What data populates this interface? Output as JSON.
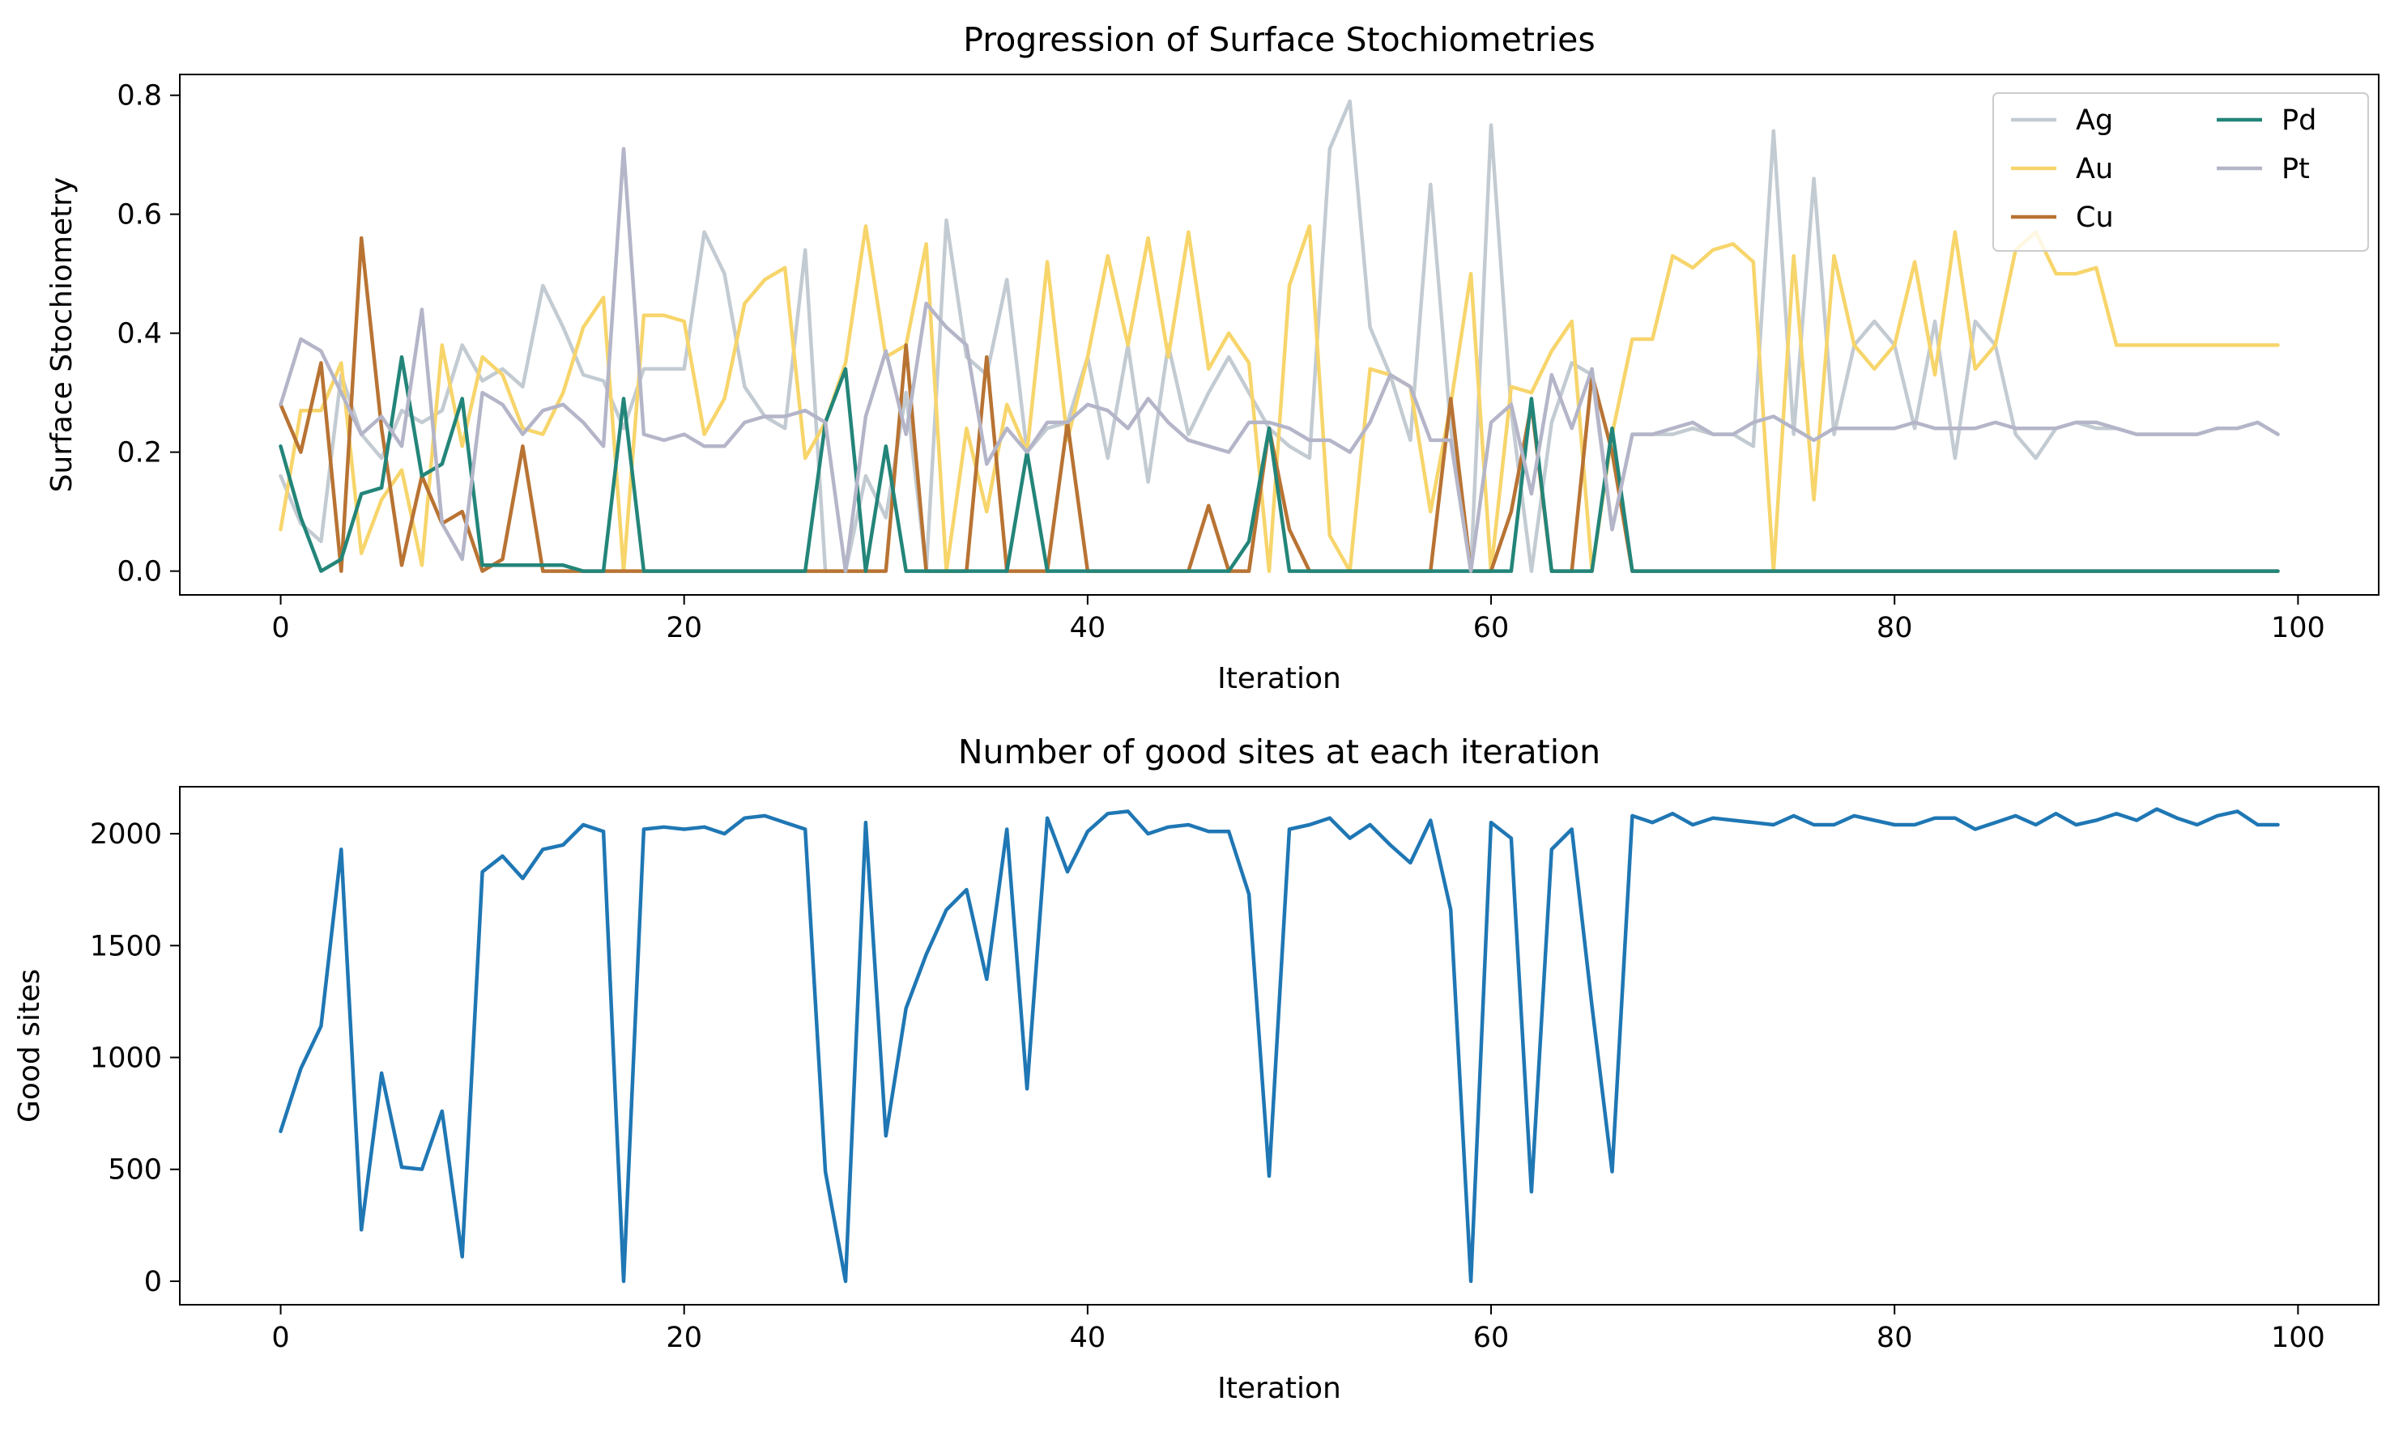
{
  "chart_data": [
    {
      "type": "line",
      "title": "Progression of Surface Stochiometries",
      "xlabel": "Iteration",
      "ylabel": "Surface Stochiometry",
      "xlim": [
        -5,
        104
      ],
      "ylim": [
        -0.04,
        0.835
      ],
      "xticks": [
        0,
        20,
        40,
        60,
        80,
        100
      ],
      "xtick_labels": [
        "0",
        "20",
        "40",
        "60",
        "80",
        "100"
      ],
      "yticks": [
        0.0,
        0.2,
        0.4,
        0.6,
        0.8
      ],
      "ytick_labels": [
        "0.0",
        "0.2",
        "0.4",
        "0.6",
        "0.8"
      ],
      "grid": false,
      "legend": {
        "placement": "upper right",
        "columns": 2
      },
      "x": [
        0,
        1,
        2,
        3,
        4,
        5,
        6,
        7,
        8,
        9,
        10,
        11,
        12,
        13,
        14,
        15,
        16,
        17,
        18,
        19,
        20,
        21,
        22,
        23,
        24,
        25,
        26,
        27,
        28,
        29,
        30,
        31,
        32,
        33,
        34,
        35,
        36,
        37,
        38,
        39,
        40,
        41,
        42,
        43,
        44,
        45,
        46,
        47,
        48,
        49,
        50,
        51,
        52,
        53,
        54,
        55,
        56,
        57,
        58,
        59,
        60,
        61,
        62,
        63,
        64,
        65,
        66,
        67,
        68,
        69,
        70,
        71,
        72,
        73,
        74,
        75,
        76,
        77,
        78,
        79,
        80,
        81,
        82,
        83,
        84,
        85,
        86,
        87,
        88,
        89,
        90,
        91,
        92,
        93,
        94,
        95,
        96,
        97,
        98,
        99
      ],
      "series": [
        {
          "name": "Ag",
          "color": "#c3cbd2",
          "values": [
            0.16,
            0.08,
            0.05,
            0.33,
            0.23,
            0.19,
            0.27,
            0.25,
            0.27,
            0.38,
            0.32,
            0.34,
            0.31,
            0.48,
            0.41,
            0.33,
            0.32,
            0.24,
            0.34,
            0.34,
            0.34,
            0.57,
            0.5,
            0.31,
            0.26,
            0.24,
            0.54,
            0.0,
            0.0,
            0.16,
            0.09,
            0.3,
            0.0,
            0.59,
            0.36,
            0.33,
            0.49,
            0.2,
            0.24,
            0.25,
            0.36,
            0.19,
            0.38,
            0.15,
            0.38,
            0.23,
            0.3,
            0.36,
            0.3,
            0.24,
            0.21,
            0.19,
            0.71,
            0.79,
            0.41,
            0.33,
            0.22,
            0.65,
            0.24,
            0.0,
            0.75,
            0.27,
            0.0,
            0.25,
            0.35,
            0.33,
            0.07,
            0.23,
            0.23,
            0.23,
            0.24,
            0.23,
            0.23,
            0.21,
            0.74,
            0.23,
            0.66,
            0.23,
            0.38,
            0.42,
            0.38,
            0.24,
            0.42,
            0.19,
            0.42,
            0.38,
            0.23,
            0.19,
            0.24,
            0.25,
            0.24,
            0.24,
            0.23,
            0.23,
            0.23,
            0.23,
            0.24,
            0.24,
            0.25,
            0.23
          ]
        },
        {
          "name": "Au",
          "color": "#f7d56b",
          "values": [
            0.07,
            0.27,
            0.27,
            0.35,
            0.03,
            0.12,
            0.17,
            0.01,
            0.38,
            0.21,
            0.36,
            0.33,
            0.24,
            0.23,
            0.3,
            0.41,
            0.46,
            0.0,
            0.43,
            0.43,
            0.42,
            0.23,
            0.29,
            0.45,
            0.49,
            0.51,
            0.19,
            0.25,
            0.35,
            0.58,
            0.36,
            0.38,
            0.55,
            0.0,
            0.24,
            0.1,
            0.28,
            0.2,
            0.52,
            0.22,
            0.36,
            0.53,
            0.38,
            0.56,
            0.36,
            0.57,
            0.34,
            0.4,
            0.35,
            0.0,
            0.48,
            0.58,
            0.06,
            0.0,
            0.34,
            0.33,
            0.31,
            0.1,
            0.28,
            0.5,
            0.0,
            0.31,
            0.3,
            0.37,
            0.42,
            0.0,
            0.23,
            0.39,
            0.39,
            0.53,
            0.51,
            0.54,
            0.55,
            0.52,
            0.0,
            0.53,
            0.12,
            0.53,
            0.38,
            0.34,
            0.38,
            0.52,
            0.33,
            0.57,
            0.34,
            0.38,
            0.54,
            0.57,
            0.5,
            0.5,
            0.51,
            0.38,
            0.38,
            0.38,
            0.38,
            0.38,
            0.38,
            0.38,
            0.38,
            0.38
          ]
        },
        {
          "name": "Cu",
          "color": "#b87333",
          "values": [
            0.28,
            0.2,
            0.35,
            0.0,
            0.56,
            0.24,
            0.01,
            0.16,
            0.08,
            0.1,
            0.0,
            0.02,
            0.21,
            0.0,
            0.0,
            0.0,
            0.0,
            0.0,
            0.0,
            0.0,
            0.0,
            0.0,
            0.0,
            0.0,
            0.0,
            0.0,
            0.0,
            0.0,
            0.0,
            0.0,
            0.0,
            0.38,
            0.0,
            0.0,
            0.0,
            0.36,
            0.0,
            0.0,
            0.0,
            0.25,
            0.0,
            0.0,
            0.0,
            0.0,
            0.0,
            0.0,
            0.11,
            0.0,
            0.0,
            0.24,
            0.07,
            0.0,
            0.0,
            0.0,
            0.0,
            0.0,
            0.0,
            0.0,
            0.29,
            0.0,
            0.0,
            0.1,
            0.28,
            0.0,
            0.0,
            0.33,
            0.2,
            0.0,
            0.0,
            0.0,
            0.0,
            0.0,
            0.0,
            0.0,
            0.0,
            0.0,
            0.0,
            0.0,
            0.0,
            0.0,
            0.0,
            0.0,
            0.0,
            0.0,
            0.0,
            0.0,
            0.0,
            0.0,
            0.0,
            0.0,
            0.0,
            0.0,
            0.0,
            0.0,
            0.0,
            0.0,
            0.0,
            0.0,
            0.0,
            0.0
          ]
        },
        {
          "name": "Pd",
          "color": "#238579",
          "values": [
            0.21,
            0.09,
            0.0,
            0.02,
            0.13,
            0.14,
            0.36,
            0.16,
            0.18,
            0.29,
            0.01,
            0.01,
            0.01,
            0.01,
            0.01,
            0.0,
            0.0,
            0.29,
            0.0,
            0.0,
            0.0,
            0.0,
            0.0,
            0.0,
            0.0,
            0.0,
            0.0,
            0.25,
            0.34,
            0.0,
            0.21,
            0.0,
            0.0,
            0.0,
            0.0,
            0.0,
            0.0,
            0.2,
            0.0,
            0.0,
            0.0,
            0.0,
            0.0,
            0.0,
            0.0,
            0.0,
            0.0,
            0.0,
            0.05,
            0.24,
            0.0,
            0.0,
            0.0,
            0.0,
            0.0,
            0.0,
            0.0,
            0.0,
            0.0,
            0.0,
            0.0,
            0.0,
            0.29,
            0.0,
            0.0,
            0.0,
            0.24,
            0.0,
            0.0,
            0.0,
            0.0,
            0.0,
            0.0,
            0.0,
            0.0,
            0.0,
            0.0,
            0.0,
            0.0,
            0.0,
            0.0,
            0.0,
            0.0,
            0.0,
            0.0,
            0.0,
            0.0,
            0.0,
            0.0,
            0.0,
            0.0,
            0.0,
            0.0,
            0.0,
            0.0,
            0.0,
            0.0,
            0.0,
            0.0,
            0.0
          ]
        },
        {
          "name": "Pt",
          "color": "#b4b5c8",
          "values": [
            0.28,
            0.39,
            0.37,
            0.3,
            0.23,
            0.26,
            0.21,
            0.44,
            0.08,
            0.02,
            0.3,
            0.28,
            0.23,
            0.27,
            0.28,
            0.25,
            0.21,
            0.71,
            0.23,
            0.22,
            0.23,
            0.21,
            0.21,
            0.25,
            0.26,
            0.26,
            0.27,
            0.25,
            0.0,
            0.26,
            0.37,
            0.23,
            0.45,
            0.41,
            0.38,
            0.18,
            0.24,
            0.2,
            0.25,
            0.25,
            0.28,
            0.27,
            0.24,
            0.29,
            0.25,
            0.22,
            0.21,
            0.2,
            0.25,
            0.25,
            0.24,
            0.22,
            0.22,
            0.2,
            0.25,
            0.33,
            0.31,
            0.22,
            0.22,
            0.0,
            0.25,
            0.28,
            0.13,
            0.33,
            0.24,
            0.34,
            0.07,
            0.23,
            0.23,
            0.24,
            0.25,
            0.23,
            0.23,
            0.25,
            0.26,
            0.24,
            0.22,
            0.24,
            0.24,
            0.24,
            0.24,
            0.25,
            0.24,
            0.24,
            0.24,
            0.25,
            0.24,
            0.24,
            0.24,
            0.25,
            0.25,
            0.24,
            0.23,
            0.23,
            0.23,
            0.23,
            0.24,
            0.24,
            0.25,
            0.23
          ]
        }
      ]
    },
    {
      "type": "line",
      "title": "Number of good sites at each iteration",
      "xlabel": "Iteration",
      "ylabel": "Good sites",
      "xlim": [
        -5,
        104
      ],
      "ylim": [
        -105,
        2210
      ],
      "xticks": [
        0,
        20,
        40,
        60,
        80,
        100
      ],
      "xtick_labels": [
        "0",
        "20",
        "40",
        "60",
        "80",
        "100"
      ],
      "yticks": [
        0,
        500,
        1000,
        1500,
        2000
      ],
      "ytick_labels": [
        "0",
        "500",
        "1000",
        "1500",
        "2000"
      ],
      "grid": false,
      "x": [
        0,
        1,
        2,
        3,
        4,
        5,
        6,
        7,
        8,
        9,
        10,
        11,
        12,
        13,
        14,
        15,
        16,
        17,
        18,
        19,
        20,
        21,
        22,
        23,
        24,
        25,
        26,
        27,
        28,
        29,
        30,
        31,
        32,
        33,
        34,
        35,
        36,
        37,
        38,
        39,
        40,
        41,
        42,
        43,
        44,
        45,
        46,
        47,
        48,
        49,
        50,
        51,
        52,
        53,
        54,
        55,
        56,
        57,
        58,
        59,
        60,
        61,
        62,
        63,
        64,
        65,
        66,
        67,
        68,
        69,
        70,
        71,
        72,
        73,
        74,
        75,
        76,
        77,
        78,
        79,
        80,
        81,
        82,
        83,
        84,
        85,
        86,
        87,
        88,
        89,
        90,
        91,
        92,
        93,
        94,
        95,
        96,
        97,
        98,
        99
      ],
      "series": [
        {
          "color": "#1f77b4",
          "values": [
            670,
            950,
            1140,
            1930,
            230,
            930,
            510,
            500,
            760,
            110,
            1830,
            1900,
            1800,
            1930,
            1950,
            2040,
            2010,
            0,
            2020,
            2030,
            2020,
            2030,
            2000,
            2070,
            2080,
            2050,
            2020,
            490,
            0,
            2050,
            650,
            1220,
            1460,
            1660,
            1750,
            1350,
            2020,
            860,
            2070,
            1830,
            2010,
            2090,
            2100,
            2000,
            2030,
            2040,
            2010,
            2010,
            1730,
            470,
            2020,
            2040,
            2070,
            1980,
            2040,
            1950,
            1870,
            2060,
            1660,
            0,
            2050,
            1980,
            400,
            1930,
            2020,
            1230,
            490,
            2080,
            2050,
            2090,
            2040,
            2070,
            2060,
            2050,
            2040,
            2080,
            2040,
            2040,
            2080,
            2060,
            2040,
            2040,
            2070,
            2070,
            2020,
            2050,
            2080,
            2040,
            2090,
            2040,
            2060,
            2090,
            2060,
            2110,
            2070,
            2040,
            2080,
            2100,
            2040,
            2040
          ]
        }
      ]
    }
  ]
}
